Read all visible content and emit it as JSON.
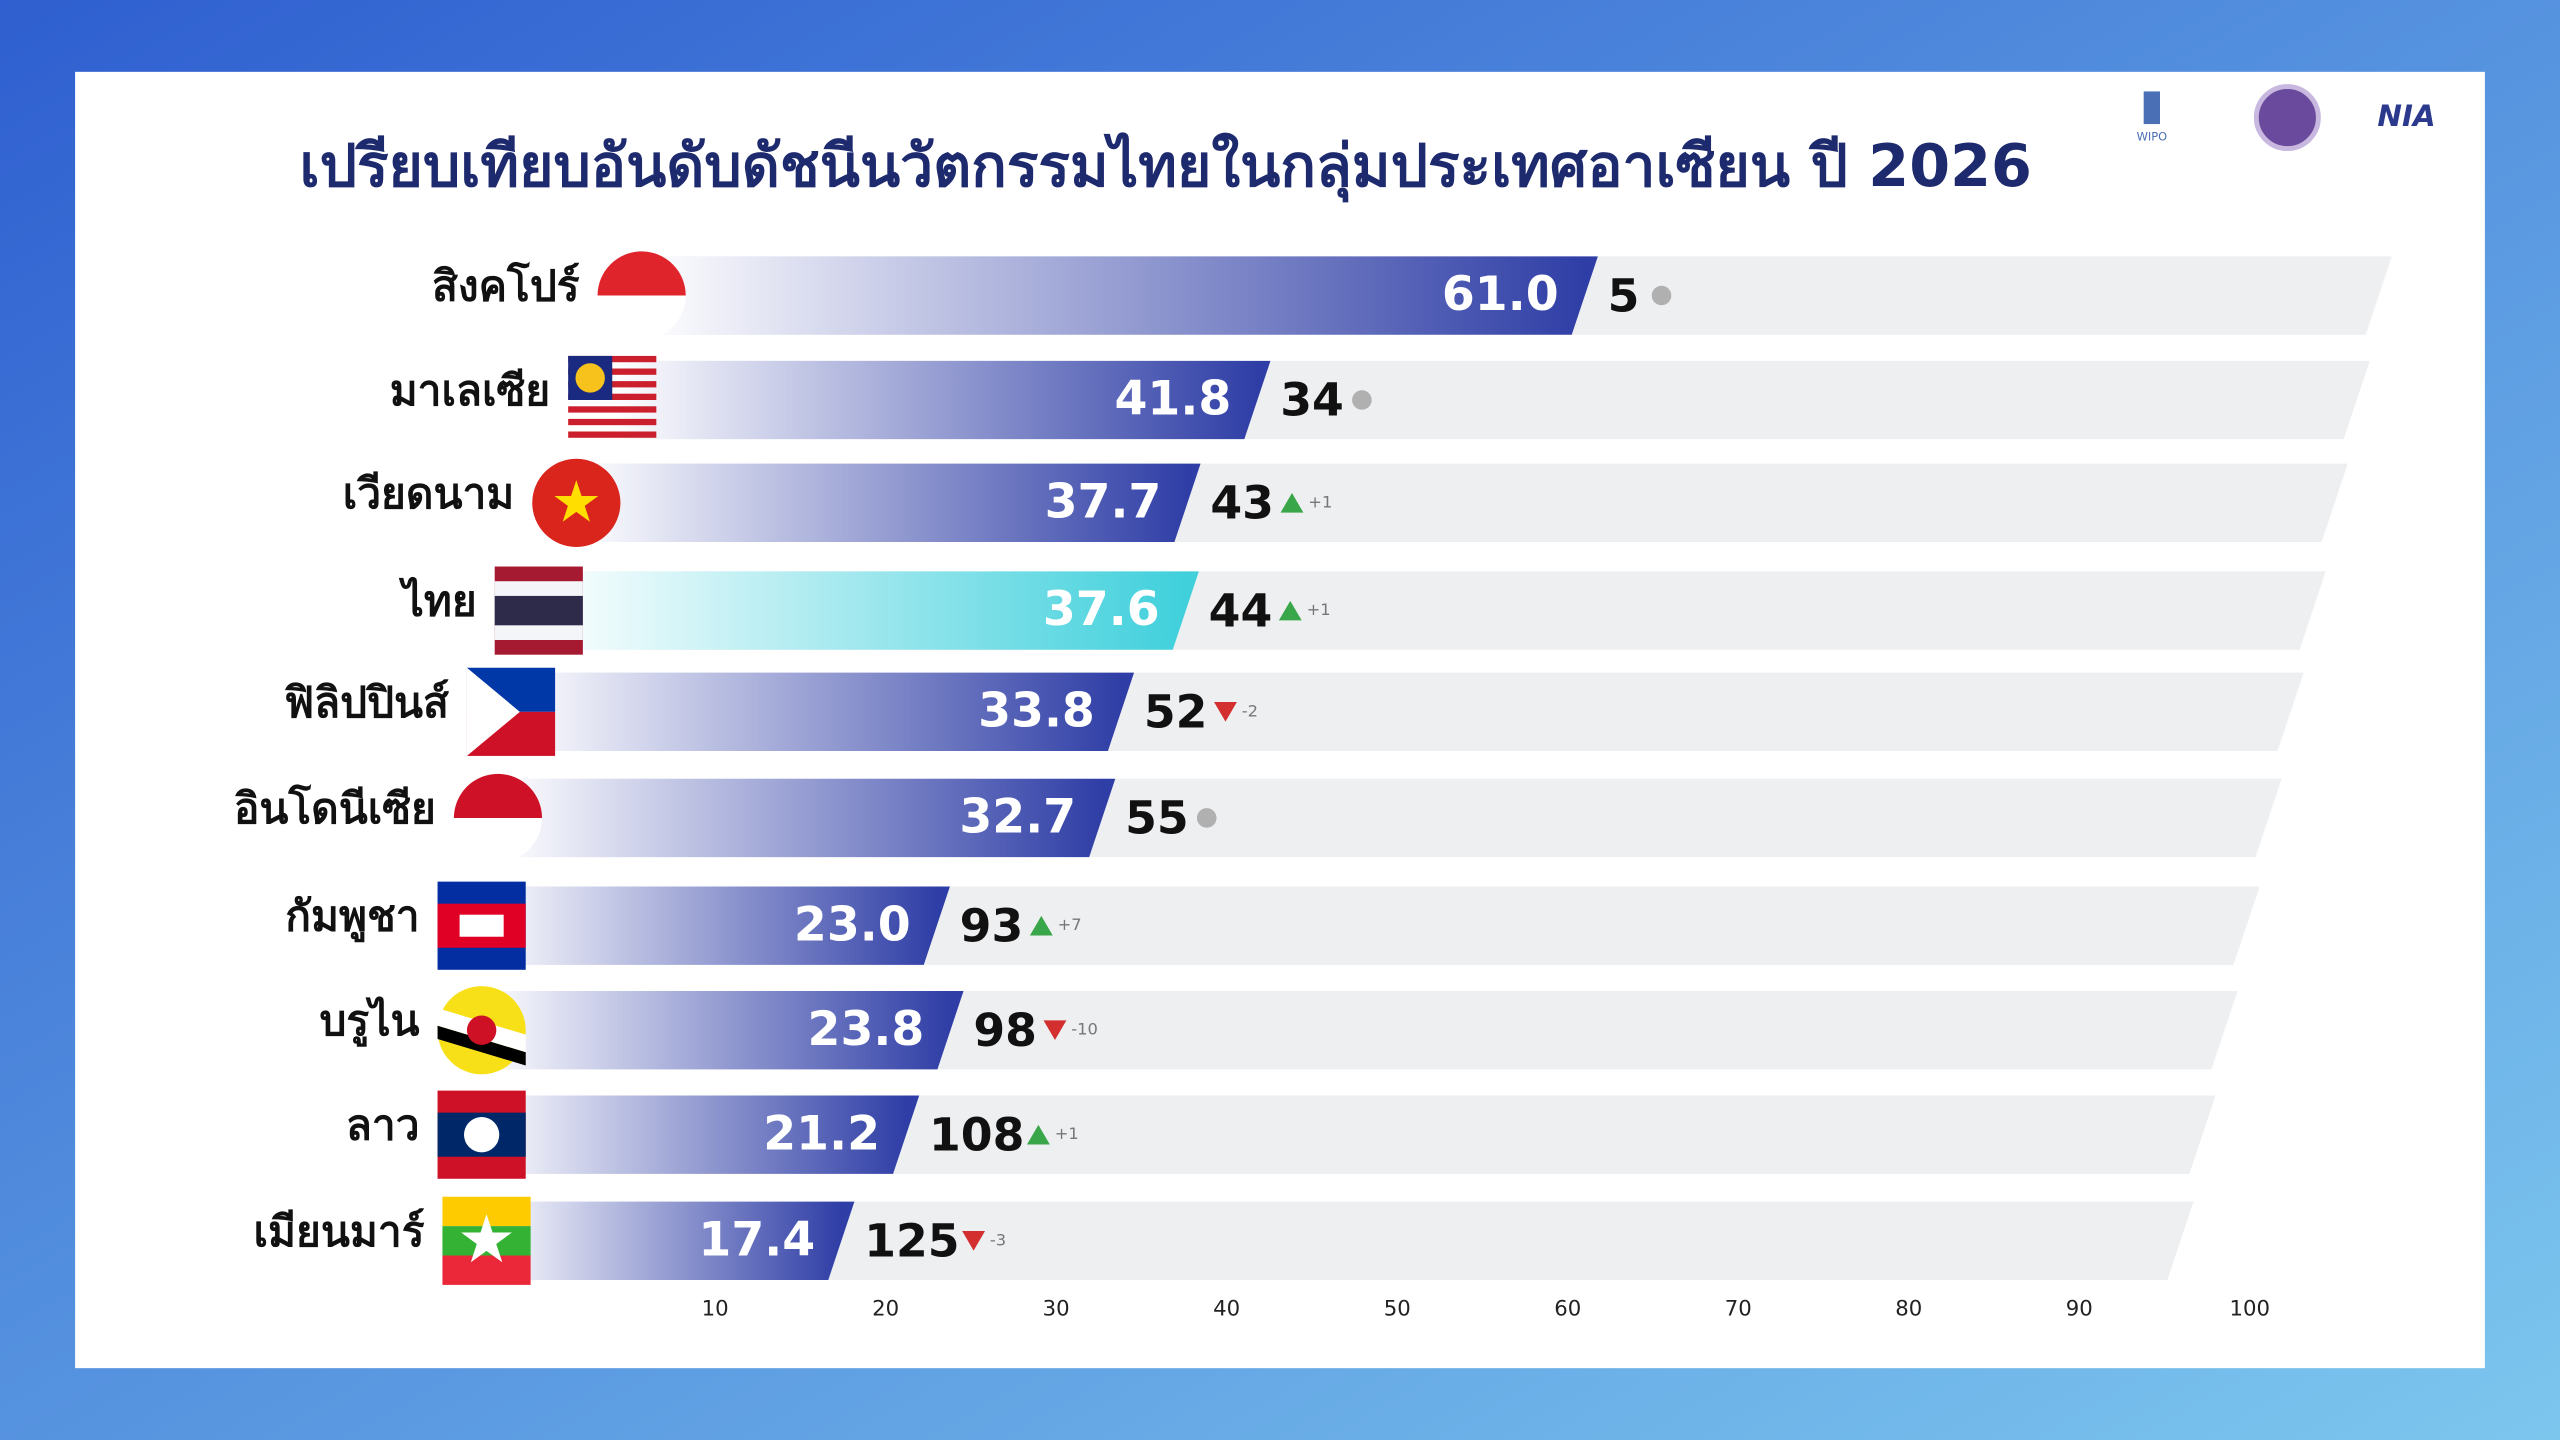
{
  "logos": {
    "wipo": "WIPO",
    "nia": "NIA"
  },
  "chart_data": {
    "type": "bar",
    "orientation": "horizontal",
    "title": "เปรียบเทียบอันดับดัชนีนวัตกรรมไทยในกลุ่มประเทศอาเซียน ปี 2026",
    "categories": [
      "สิงคโปร์",
      "มาเลเซีย",
      "เวียดนาม",
      "ไทย",
      "ฟิลิปปินส์",
      "อินโดนีเซีย",
      "กัมพูชา",
      "บรูไน",
      "ลาว",
      "เมียนมาร์"
    ],
    "values": [
      61.0,
      41.8,
      37.7,
      37.6,
      33.8,
      32.7,
      23.0,
      23.8,
      21.2,
      17.4
    ],
    "value_labels": [
      "61.0",
      "41.8",
      "37.7",
      "37.6",
      "33.8",
      "32.7",
      "23.0",
      "23.8",
      "21.2",
      "17.4"
    ],
    "ranks": [
      5,
      34,
      43,
      44,
      52,
      55,
      93,
      98,
      108,
      125
    ],
    "rank_change": [
      null,
      null,
      1,
      1,
      -2,
      null,
      7,
      -10,
      1,
      -3
    ],
    "rank_change_labels": [
      null,
      null,
      "+1",
      "+1",
      "-2",
      null,
      "+7",
      "-10",
      "+1",
      "-3"
    ],
    "xlim": [
      0,
      100
    ],
    "xticks": [
      10,
      20,
      30,
      40,
      50,
      60,
      70,
      80,
      90,
      100
    ],
    "color": "#2f3ea6",
    "highlight_index": 3,
    "highlight_color": "#3fd0dc",
    "up_color": "#3aa64a",
    "down_color": "#d32f2f",
    "same_color": "#b0b0b0"
  }
}
